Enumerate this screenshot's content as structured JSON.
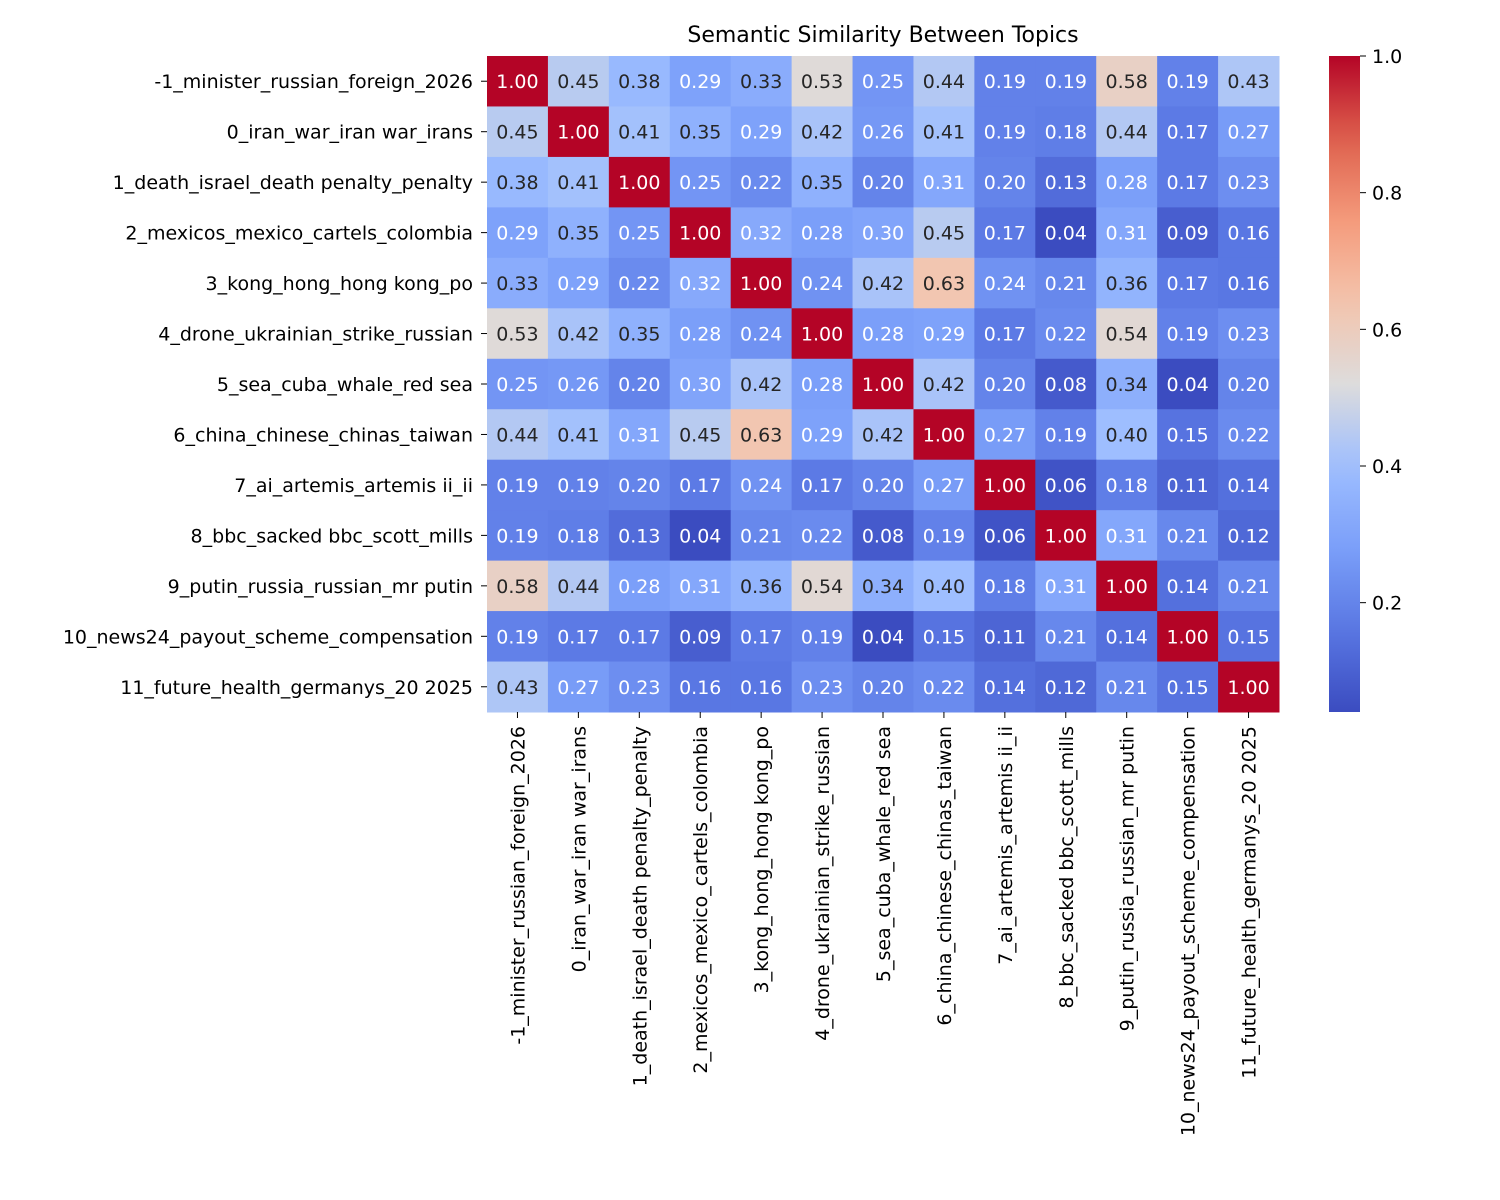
{
  "chart_data": {
    "type": "heatmap",
    "title": "Semantic Similarity Between Topics",
    "colormap": "coolwarm",
    "vmin": 0.04,
    "vmax": 1.0,
    "colorbar_ticks": [
      "0.2",
      "0.4",
      "0.6",
      "0.8",
      "1.0"
    ],
    "labels": [
      "-1_minister_russian_foreign_2026",
      "0_iran_war_iran war_irans",
      "1_death_israel_death penalty_penalty",
      "2_mexicos_mexico_cartels_colombia",
      "3_kong_hong_hong kong_po",
      "4_drone_ukrainian_strike_russian",
      "5_sea_cuba_whale_red sea",
      "6_china_chinese_chinas_taiwan",
      "7_ai_artemis_artemis ii_ii",
      "8_bbc_sacked bbc_scott_mills",
      "9_putin_russia_russian_mr putin",
      "10_news24_payout_scheme_compensation",
      "11_future_health_germanys_20 2025"
    ],
    "matrix": [
      [
        1.0,
        0.45,
        0.38,
        0.29,
        0.33,
        0.53,
        0.25,
        0.44,
        0.19,
        0.19,
        0.58,
        0.19,
        0.43
      ],
      [
        0.45,
        1.0,
        0.41,
        0.35,
        0.29,
        0.42,
        0.26,
        0.41,
        0.19,
        0.18,
        0.44,
        0.17,
        0.27
      ],
      [
        0.38,
        0.41,
        1.0,
        0.25,
        0.22,
        0.35,
        0.2,
        0.31,
        0.2,
        0.13,
        0.28,
        0.17,
        0.23
      ],
      [
        0.29,
        0.35,
        0.25,
        1.0,
        0.32,
        0.28,
        0.3,
        0.45,
        0.17,
        0.04,
        0.31,
        0.09,
        0.16
      ],
      [
        0.33,
        0.29,
        0.22,
        0.32,
        1.0,
        0.24,
        0.42,
        0.63,
        0.24,
        0.21,
        0.36,
        0.17,
        0.16
      ],
      [
        0.53,
        0.42,
        0.35,
        0.28,
        0.24,
        1.0,
        0.28,
        0.29,
        0.17,
        0.22,
        0.54,
        0.19,
        0.23
      ],
      [
        0.25,
        0.26,
        0.2,
        0.3,
        0.42,
        0.28,
        1.0,
        0.42,
        0.2,
        0.08,
        0.34,
        0.04,
        0.2
      ],
      [
        0.44,
        0.41,
        0.31,
        0.45,
        0.63,
        0.29,
        0.42,
        1.0,
        0.27,
        0.19,
        0.4,
        0.15,
        0.22
      ],
      [
        0.19,
        0.19,
        0.2,
        0.17,
        0.24,
        0.17,
        0.2,
        0.27,
        1.0,
        0.06,
        0.18,
        0.11,
        0.14
      ],
      [
        0.19,
        0.18,
        0.13,
        0.04,
        0.21,
        0.22,
        0.08,
        0.19,
        0.06,
        1.0,
        0.31,
        0.21,
        0.12
      ],
      [
        0.58,
        0.44,
        0.28,
        0.31,
        0.36,
        0.54,
        0.34,
        0.4,
        0.18,
        0.31,
        1.0,
        0.14,
        0.21
      ],
      [
        0.19,
        0.17,
        0.17,
        0.09,
        0.17,
        0.19,
        0.04,
        0.15,
        0.11,
        0.21,
        0.14,
        1.0,
        0.15
      ],
      [
        0.43,
        0.27,
        0.23,
        0.16,
        0.16,
        0.23,
        0.2,
        0.22,
        0.14,
        0.12,
        0.21,
        0.15,
        1.0
      ]
    ]
  }
}
